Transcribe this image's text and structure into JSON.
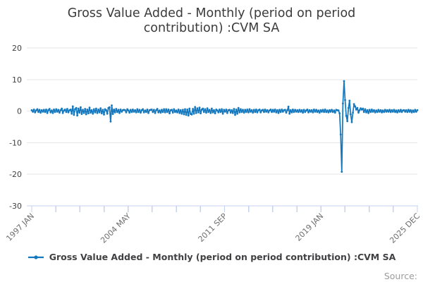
{
  "source_label": "Source:",
  "chart_data": {
    "type": "line",
    "title": "Gross Value Added - Monthly (period on period contribution) :CVM SA",
    "legend_label": "Gross Value Added - Monthly (period on period contribution) :CVM SA",
    "frequency": "monthly",
    "start_period": "1997 JAN",
    "end_period": "2025 DEC",
    "x_tick_labels": [
      "1997 JAN",
      "2004 MAY",
      "2011 SEP",
      "2019 JAN",
      "2025 DEC"
    ],
    "x_tick_count": 17,
    "y_ticks": [
      20,
      10,
      0,
      -10,
      -20,
      -30
    ],
    "ylim": [
      -30,
      20
    ],
    "grid": "horizontal-only",
    "legend_position": "bottom-center",
    "colors": {
      "line": "#1478be",
      "grid": "#e6e6e6",
      "axis": "#c5d2ec",
      "y_label": "#414042",
      "x_label": "#6e6e6e",
      "title": "#3b3b3b",
      "source": "#9b9b9b"
    },
    "values_by_year": [
      [
        0.3,
        -0.2,
        0.5,
        -0.4,
        0.2,
        0.6,
        -0.3,
        0.4,
        -0.5,
        0.3,
        -0.2,
        0.4
      ],
      [
        -0.3,
        0.5,
        -0.6,
        0.3,
        0.7,
        -0.4,
        0.2,
        -0.6,
        0.5,
        -0.3,
        0.6,
        -0.2
      ],
      [
        0.4,
        -0.5,
        0.3,
        0.8,
        -0.6,
        0.2,
        0.5,
        -0.3,
        0.7,
        -0.4,
        0.3,
        0.5
      ],
      [
        -0.8,
        1.5,
        -1.2,
        0.6,
        1.0,
        -1.4,
        0.8,
        -0.5,
        1.2,
        -0.9,
        0.4,
        -0.6
      ],
      [
        0.7,
        -1.0,
        0.5,
        -0.7,
        1.1,
        -0.5,
        0.3,
        -0.8,
        0.6,
        -0.4,
        0.8,
        -0.6
      ],
      [
        0.5,
        -0.4,
        0.9,
        -0.7,
        0.4,
        -1.1,
        0.6,
        0.3,
        -0.8,
        1.0,
        1.2,
        -3.3
      ],
      [
        1.8,
        -0.9,
        0.5,
        -0.4,
        0.7,
        -0.3,
        0.4,
        -0.6,
        0.5,
        -0.2,
        0.3,
        0.4
      ],
      [
        0.3,
        -0.4,
        0.6,
        0.2,
        -0.5,
        0.4,
        -0.3,
        0.5,
        -0.2,
        0.3,
        -0.4,
        0.6
      ],
      [
        -0.3,
        0.4,
        -0.5,
        0.3,
        0.6,
        -0.4,
        0.2,
        -0.3,
        0.5,
        -0.6,
        0.3,
        0.4
      ],
      [
        0.5,
        -0.3,
        0.4,
        -0.6,
        0.3,
        0.7,
        -0.4,
        0.2,
        -0.5,
        0.4,
        -0.3,
        0.6
      ],
      [
        -0.4,
        0.6,
        -0.3,
        0.5,
        -0.7,
        0.3,
        0.4,
        -0.5,
        0.6,
        -0.3,
        0.2,
        -0.4
      ],
      [
        0.5,
        -0.6,
        0.3,
        -0.8,
        0.4,
        -1.0,
        0.6,
        -1.2,
        0.5,
        -1.4,
        0.8,
        -0.9
      ],
      [
        -1.1,
        0.7,
        -0.8,
        1.3,
        -0.6,
        0.9,
        -0.4,
        1.1,
        -0.7,
        0.5,
        0.8,
        -0.3
      ],
      [
        0.6,
        -0.5,
        0.9,
        -0.3,
        0.4,
        -0.6,
        0.8,
        -0.4,
        0.3,
        -0.7,
        0.5,
        0.2
      ],
      [
        -0.4,
        0.5,
        -0.3,
        0.6,
        -0.8,
        0.4,
        -0.2,
        0.5,
        -0.6,
        0.3,
        0.4,
        -0.5
      ],
      [
        0.3,
        -0.6,
        0.7,
        -1.2,
        0.5,
        -0.8,
        1.0,
        -0.4,
        0.6,
        -0.3,
        0.4,
        -0.5
      ],
      [
        0.4,
        -0.3,
        0.5,
        -0.4,
        0.6,
        -0.2,
        0.3,
        -0.5,
        0.4,
        -0.3,
        0.5,
        -0.4
      ],
      [
        0.3,
        0.5,
        -0.4,
        0.2,
        0.4,
        -0.3,
        0.5,
        -0.2,
        0.3,
        -0.4,
        0.2,
        0.5
      ],
      [
        -0.3,
        0.4,
        -0.2,
        0.5,
        -0.4,
        0.3,
        -0.6,
        0.4,
        -0.3,
        0.5,
        -0.2,
        0.3
      ],
      [
        0.4,
        -0.5,
        0.3,
        1.4,
        -0.8,
        0.3,
        -0.4,
        0.5,
        -0.3,
        0.4,
        -0.2,
        0.3
      ],
      [
        -0.3,
        0.4,
        -0.2,
        0.3,
        -0.5,
        0.4,
        -0.3,
        0.2,
        0.5,
        -0.4,
        0.3,
        -0.2
      ],
      [
        0.3,
        -0.4,
        0.5,
        -0.2,
        0.4,
        -0.3,
        0.2,
        -0.5,
        0.3,
        -0.2,
        0.4,
        -0.3
      ],
      [
        0.5,
        -0.3,
        0.2,
        -0.4,
        0.3,
        -0.2,
        0.4,
        -0.3,
        0.2,
        -0.5,
        0.4,
        0.3
      ],
      [
        0.2,
        -0.7,
        -7.4,
        -19.2,
        2.4,
        9.5,
        3.5,
        -1.5,
        -3.2,
        1.0,
        3.3,
        -1.0
      ],
      [
        -3.5,
        -0.5,
        2.2,
        1.5,
        0.5,
        1.0,
        -0.5,
        0.3,
        0.9,
        0.5,
        0.8,
        -0.3
      ],
      [
        0.6,
        -0.4,
        0.3,
        -0.6,
        0.4,
        -0.3,
        0.5,
        -0.2,
        0.3,
        -0.4,
        0.2,
        -0.3
      ],
      [
        0.4,
        -0.2,
        0.3,
        -0.4,
        0.2,
        -0.3,
        0.4,
        -0.2,
        0.3,
        -0.2,
        0.4,
        -0.3
      ],
      [
        0.3,
        -0.2,
        0.4,
        -0.3,
        0.2,
        -0.4,
        0.3,
        -0.2,
        0.4,
        -0.3,
        0.2,
        0.3
      ],
      [
        -0.2,
        0.3,
        -0.3,
        0.4,
        -0.2,
        0.3,
        -0.4,
        0.2,
        -0.3,
        0.4,
        -0.2,
        0.3
      ]
    ]
  }
}
